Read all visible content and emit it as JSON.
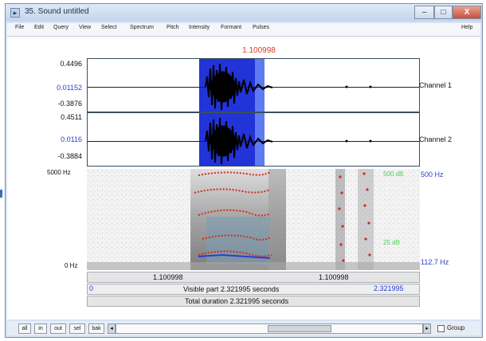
{
  "window": {
    "title": "35. Sound untitled",
    "controls": {
      "minimize": "–",
      "maximize": "□",
      "close": "X"
    }
  },
  "menu": {
    "items": [
      "File",
      "Edit",
      "Query",
      "View",
      "Select",
      "Spectrum",
      "Pitch",
      "Intensity",
      "Formant",
      "Pulses"
    ],
    "help": "Help"
  },
  "cursor_time": "1.100998",
  "waveform": {
    "channel1": {
      "label": "Channel 1",
      "max": "0.4496",
      "mid": "0.01152",
      "min": "-0.3876"
    },
    "channel2": {
      "label": "Channel 2",
      "max": "0.4511",
      "mid": "0.0116",
      "min": "-0.3884"
    }
  },
  "spectrogram": {
    "top_freq": "5000 Hz",
    "bottom_freq": "0 Hz",
    "formant_top": "500 Hz",
    "pitch_value": "112.7 Hz",
    "green_top": "500 dB",
    "green_bottom": "25 dB"
  },
  "time_axis": {
    "left_time": "1.100998",
    "right_time": "1.100998",
    "visible_start": "0",
    "visible_label": "Visible part 2.321995 seconds",
    "visible_end": "2.321995",
    "total_label": "Total duration 2.321995 seconds"
  },
  "toolbar": {
    "buttons": [
      "all",
      "in",
      "out",
      "sel",
      "bak"
    ],
    "group_label": "Group",
    "scroll_left": "◂",
    "scroll_right": "▸"
  },
  "colors": {
    "selection": "#2233d8",
    "pitch": "#d42a1c",
    "formant": "#e03a2a",
    "intensity": "#4fd05a",
    "frequency_label": "#2b3ed0",
    "titlebar": "#d6e3f3"
  },
  "icons": {
    "app": "praat-app-icon",
    "min": "minimize-icon",
    "max": "maximize-icon",
    "close": "close-icon"
  }
}
